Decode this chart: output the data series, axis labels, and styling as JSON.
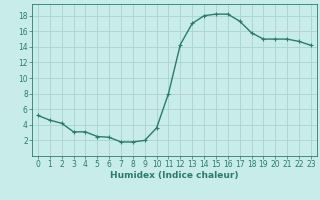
{
  "x": [
    0,
    1,
    2,
    3,
    4,
    5,
    6,
    7,
    8,
    9,
    10,
    11,
    12,
    13,
    14,
    15,
    16,
    17,
    18,
    19,
    20,
    21,
    22,
    23
  ],
  "y": [
    5.2,
    4.6,
    4.2,
    3.1,
    3.1,
    2.5,
    2.4,
    1.8,
    1.8,
    2.0,
    3.6,
    8.0,
    14.3,
    17.0,
    18.0,
    18.2,
    18.2,
    17.3,
    15.8,
    15.0,
    15.0,
    15.0,
    14.7,
    14.2
  ],
  "xlabel": "Humidex (Indice chaleur)",
  "ylim": [
    0,
    19.5
  ],
  "xlim": [
    -0.5,
    23.5
  ],
  "yticks": [
    2,
    4,
    6,
    8,
    10,
    12,
    14,
    16,
    18
  ],
  "xticks": [
    0,
    1,
    2,
    3,
    4,
    5,
    6,
    7,
    8,
    9,
    10,
    11,
    12,
    13,
    14,
    15,
    16,
    17,
    18,
    19,
    20,
    21,
    22,
    23
  ],
  "line_color": "#2a7b6e",
  "marker": "+",
  "bg_color": "#c8ecea",
  "grid_color": "#aad4d0",
  "tick_label_color": "#2a7b6e",
  "xlabel_color": "#2a7b6e",
  "axis_color": "#2a7b6e",
  "line_width": 1.0,
  "marker_size": 3.5,
  "marker_edge_width": 0.8,
  "font_size_tick": 5.5,
  "font_size_xlabel": 6.5
}
